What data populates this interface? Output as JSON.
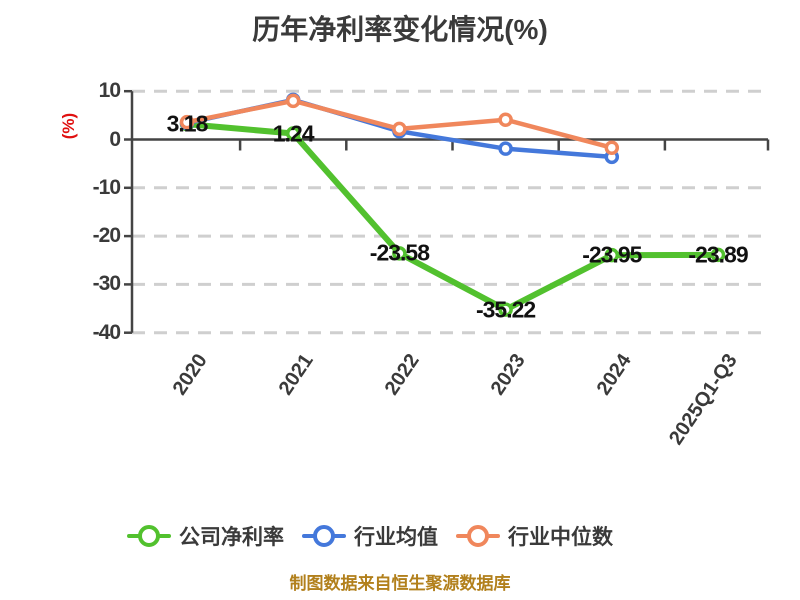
{
  "title": "历年净利率变化情况(%)",
  "y_axis_label": "(%)",
  "footer": "制图数据来自恒生聚源数据库",
  "colors": {
    "company_green": "#52c12e",
    "industry_avg_blue": "#4478db",
    "industry_median_orange": "#f0875c",
    "axis": "#444444",
    "grid": "#cfcfcf",
    "title_text": "#3a3a3a",
    "ylabel_red": "#e01010",
    "data_label": "#111111",
    "footer_gold": "#b2801c"
  },
  "chart_data": {
    "type": "line",
    "title": "历年净利率变化情况(%)",
    "ylabel": "(%)",
    "categories": [
      "2020",
      "2021",
      "2022",
      "2023",
      "2024",
      "2025Q1-Q3"
    ],
    "series": [
      {
        "name": "公司净利率",
        "color": "#52c12e",
        "values": [
          3.18,
          1.24,
          -23.58,
          -35.22,
          -23.95,
          -23.89
        ],
        "labels": [
          "3.18",
          "1.24",
          "-23.58",
          "-35.22",
          "-23.95",
          "-23.89"
        ]
      },
      {
        "name": "行业均值",
        "color": "#4478db",
        "values": [
          3.4,
          8.2,
          1.7,
          -1.9,
          -3.6,
          null
        ],
        "labels": null
      },
      {
        "name": "行业中位数",
        "color": "#f0875c",
        "values": [
          3.6,
          8.0,
          2.2,
          4.1,
          -1.7,
          null
        ],
        "labels": null
      }
    ],
    "yticks": [
      10,
      0,
      -10,
      -20,
      -30,
      -40
    ],
    "ylim": [
      -40,
      10
    ],
    "grid": "dashed horizontal gridlines, solid zero axis",
    "legend_position": "bottom",
    "x_labels_rotated": true
  }
}
